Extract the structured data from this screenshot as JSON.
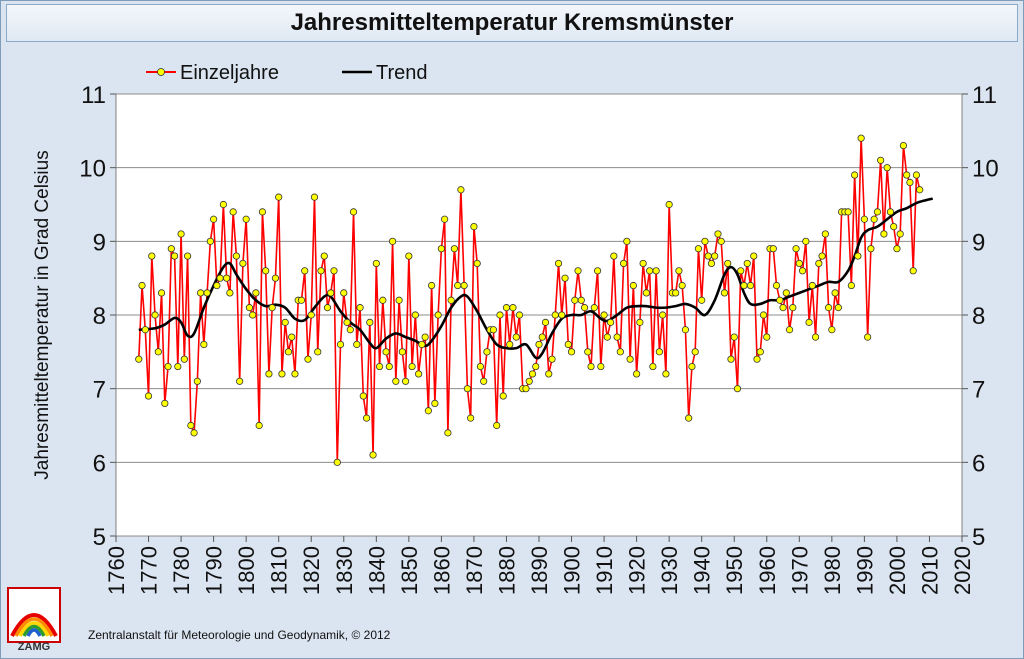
{
  "title": "Jahresmitteltemperatur Kremsmünster",
  "footer": "Zentralanstalt für Meteorologie und Geodynamik, © 2012",
  "logo_text": "ZAMG",
  "colors": {
    "series1": "#ff0000",
    "marker": "#ffff00",
    "trend": "#000000",
    "plot_bg": "#ffffff"
  },
  "chart_data": {
    "type": "line",
    "ylabel": "Jahresmitteltemperatur in Grad Celsius",
    "xlabel": "",
    "xlim": [
      1760,
      2020
    ],
    "ylim": [
      5,
      11
    ],
    "xticks": [
      "1760",
      "1770",
      "1780",
      "1790",
      "1800",
      "1810",
      "1820",
      "1830",
      "1840",
      "1850",
      "1860",
      "1870",
      "1880",
      "1890",
      "1900",
      "1910",
      "1920",
      "1930",
      "1940",
      "1950",
      "1960",
      "1970",
      "1980",
      "1990",
      "2000",
      "2010",
      "2020"
    ],
    "yticks": [
      "5",
      "6",
      "7",
      "8",
      "9",
      "10",
      "11"
    ],
    "grid": true,
    "legend_position": "top-left",
    "series": [
      {
        "name": "Einzeljahre",
        "x_start": 1767,
        "values": [
          7.4,
          8.4,
          7.8,
          6.9,
          8.8,
          8.0,
          7.5,
          8.3,
          6.8,
          7.3,
          8.9,
          8.8,
          7.3,
          9.1,
          7.4,
          8.8,
          6.5,
          6.4,
          7.1,
          8.3,
          7.6,
          8.3,
          9.0,
          9.3,
          8.4,
          8.5,
          9.5,
          8.5,
          8.3,
          9.4,
          8.8,
          7.1,
          8.7,
          9.3,
          8.1,
          8.0,
          8.3,
          6.5,
          9.4,
          8.6,
          7.2,
          8.1,
          8.5,
          9.6,
          7.2,
          7.9,
          7.5,
          7.7,
          7.2,
          8.2,
          8.2,
          8.6,
          7.4,
          8.0,
          9.6,
          7.5,
          8.6,
          8.8,
          8.1,
          8.3,
          8.6,
          6.0,
          7.6,
          8.3,
          7.9,
          7.8,
          9.4,
          7.6,
          8.1,
          6.9,
          6.6,
          7.9,
          6.1,
          8.7,
          7.3,
          8.2,
          7.5,
          7.3,
          9.0,
          7.1,
          8.2,
          7.5,
          7.1,
          8.8,
          7.3,
          8.0,
          7.2,
          7.6,
          7.7,
          6.7,
          8.4,
          6.8,
          8.0,
          8.9,
          9.3,
          6.4,
          8.2,
          8.9,
          8.4,
          9.7,
          8.4,
          7.0,
          6.6,
          9.2,
          8.7,
          7.3,
          7.1,
          7.5,
          7.8,
          7.8,
          6.5,
          8.0,
          6.9,
          8.1,
          7.6,
          8.1,
          7.7,
          8.0,
          7.0,
          7.0,
          7.1,
          7.2,
          7.3,
          7.6,
          7.7,
          7.9,
          7.2,
          7.4,
          8.0,
          8.7,
          8.0,
          8.5,
          7.6,
          7.5,
          8.2,
          8.6,
          8.2,
          8.1,
          7.5,
          7.3,
          8.1,
          8.6,
          7.3,
          8.0,
          7.7,
          7.9,
          8.8,
          7.7,
          7.5,
          8.7,
          9.0,
          7.4,
          8.4,
          7.2,
          7.9,
          8.7,
          8.3,
          8.6,
          7.3,
          8.6,
          7.5,
          8.0,
          7.2,
          9.5,
          8.3,
          8.3,
          8.6,
          8.4,
          7.8,
          6.6,
          7.3,
          7.5,
          8.9,
          8.2,
          9.0,
          8.8,
          8.7,
          8.8,
          9.1,
          9.0,
          8.3,
          8.7,
          7.4,
          7.7,
          7.0,
          8.6,
          8.4,
          8.7,
          8.4,
          8.8,
          7.4,
          7.5,
          8.0,
          7.7,
          8.9,
          8.9,
          8.4,
          8.2,
          8.1,
          8.3,
          7.8,
          8.1,
          8.9,
          8.7,
          8.6,
          9.0,
          7.9,
          8.4,
          7.7,
          8.7,
          8.8,
          9.1,
          8.1,
          7.8,
          8.3,
          8.1,
          9.4,
          9.4,
          9.4,
          8.4,
          9.9,
          8.8,
          10.4,
          9.3,
          7.7,
          8.9,
          9.3,
          9.4,
          10.1,
          9.1,
          10.0,
          9.4,
          9.2,
          8.9,
          9.1,
          10.3,
          9.9,
          9.8,
          8.6,
          9.9,
          9.7
        ]
      },
      {
        "name": "Trend",
        "points": [
          [
            1767,
            7.8
          ],
          [
            1772,
            7.82
          ],
          [
            1775,
            7.87
          ],
          [
            1778,
            7.96
          ],
          [
            1780,
            7.9
          ],
          [
            1782,
            7.72
          ],
          [
            1784,
            7.75
          ],
          [
            1787,
            8.1
          ],
          [
            1790,
            8.4
          ],
          [
            1793,
            8.65
          ],
          [
            1795,
            8.7
          ],
          [
            1797,
            8.55
          ],
          [
            1800,
            8.35
          ],
          [
            1803,
            8.2
          ],
          [
            1806,
            8.12
          ],
          [
            1809,
            8.14
          ],
          [
            1812,
            8.1
          ],
          [
            1815,
            7.95
          ],
          [
            1818,
            7.93
          ],
          [
            1821,
            8.1
          ],
          [
            1824,
            8.25
          ],
          [
            1826,
            8.25
          ],
          [
            1829,
            8.05
          ],
          [
            1832,
            7.9
          ],
          [
            1835,
            7.8
          ],
          [
            1838,
            7.62
          ],
          [
            1840,
            7.55
          ],
          [
            1843,
            7.68
          ],
          [
            1846,
            7.75
          ],
          [
            1849,
            7.7
          ],
          [
            1852,
            7.65
          ],
          [
            1855,
            7.58
          ],
          [
            1857,
            7.65
          ],
          [
            1860,
            7.85
          ],
          [
            1863,
            8.1
          ],
          [
            1866,
            8.25
          ],
          [
            1868,
            8.25
          ],
          [
            1871,
            8.05
          ],
          [
            1874,
            7.8
          ],
          [
            1877,
            7.6
          ],
          [
            1880,
            7.55
          ],
          [
            1883,
            7.55
          ],
          [
            1886,
            7.6
          ],
          [
            1889,
            7.42
          ],
          [
            1891,
            7.48
          ],
          [
            1894,
            7.75
          ],
          [
            1897,
            7.95
          ],
          [
            1900,
            8.0
          ],
          [
            1903,
            8.0
          ],
          [
            1906,
            8.05
          ],
          [
            1909,
            7.95
          ],
          [
            1911,
            7.92
          ],
          [
            1914,
            8.0
          ],
          [
            1917,
            8.1
          ],
          [
            1920,
            8.12
          ],
          [
            1923,
            8.12
          ],
          [
            1926,
            8.1
          ],
          [
            1929,
            8.1
          ],
          [
            1932,
            8.12
          ],
          [
            1935,
            8.15
          ],
          [
            1938,
            8.1
          ],
          [
            1941,
            8.0
          ],
          [
            1944,
            8.2
          ],
          [
            1947,
            8.55
          ],
          [
            1949,
            8.65
          ],
          [
            1951,
            8.55
          ],
          [
            1953,
            8.3
          ],
          [
            1955,
            8.15
          ],
          [
            1958,
            8.15
          ],
          [
            1961,
            8.2
          ],
          [
            1964,
            8.2
          ],
          [
            1967,
            8.25
          ],
          [
            1970,
            8.3
          ],
          [
            1973,
            8.35
          ],
          [
            1976,
            8.4
          ],
          [
            1979,
            8.45
          ],
          [
            1982,
            8.45
          ],
          [
            1985,
            8.6
          ],
          [
            1987,
            8.8
          ],
          [
            1989,
            9.05
          ],
          [
            1991,
            9.15
          ],
          [
            1994,
            9.2
          ],
          [
            1997,
            9.3
          ],
          [
            2000,
            9.4
          ],
          [
            2003,
            9.45
          ],
          [
            2006,
            9.52
          ],
          [
            2009,
            9.56
          ],
          [
            2011,
            9.58
          ]
        ]
      }
    ]
  }
}
